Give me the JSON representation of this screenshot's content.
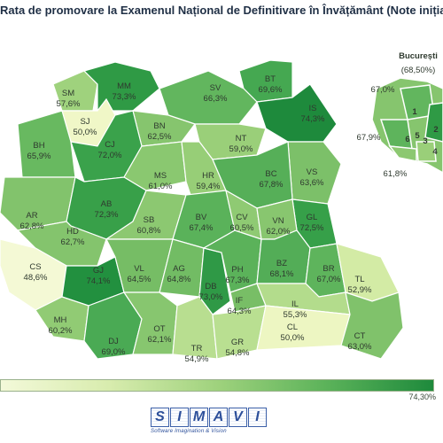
{
  "title": "Rata de promovare la Examenul Național de Definitivare în Învățământ (Note inițiale)",
  "bucharest": {
    "name": "București",
    "value": "(68,50%)",
    "sectors": [
      {
        "code": "1",
        "value": "67,0%"
      },
      {
        "code": "2",
        "value": ""
      },
      {
        "code": "3",
        "value": ""
      },
      {
        "code": "4",
        "value": ""
      },
      {
        "code": "5",
        "value": "61,8%"
      },
      {
        "code": "6",
        "value": "67,9%"
      }
    ]
  },
  "legend": {
    "max": "74,30%",
    "color_low": "#f3f9d9",
    "color_high": "#1e8a3c"
  },
  "counties": [
    {
      "code": "SM",
      "value": "57,6%",
      "color": "#9fd27d"
    },
    {
      "code": "MM",
      "value": "73,3%",
      "color": "#2f9a45"
    },
    {
      "code": "BT",
      "value": "69,6%",
      "color": "#45a851"
    },
    {
      "code": "SJ",
      "value": "50,0%",
      "color": "#f0f7c7"
    },
    {
      "code": "SV",
      "value": "66,3%",
      "color": "#62b65e"
    },
    {
      "code": "BN",
      "value": "62,5%",
      "color": "#86c56e"
    },
    {
      "code": "IS",
      "value": "74,3%",
      "color": "#1e8a3c"
    },
    {
      "code": "BH",
      "value": "65,9%",
      "color": "#68b960"
    },
    {
      "code": "CJ",
      "value": "72,0%",
      "color": "#3aa24b"
    },
    {
      "code": "NT",
      "value": "59,0%",
      "color": "#9acf79"
    },
    {
      "code": "VS",
      "value": "63,6%",
      "color": "#7cc069"
    },
    {
      "code": "MS",
      "value": "61,0%",
      "color": "#8ac870"
    },
    {
      "code": "HR",
      "value": "59,4%",
      "color": "#97ce77"
    },
    {
      "code": "BC",
      "value": "67,8%",
      "color": "#56af58"
    },
    {
      "code": "AR",
      "value": "62,8%",
      "color": "#82c36c"
    },
    {
      "code": "AB",
      "value": "72,3%",
      "color": "#38a049"
    },
    {
      "code": "GL",
      "value": "72,5%",
      "color": "#36a049"
    },
    {
      "code": "SB",
      "value": "60,8%",
      "color": "#8cc871"
    },
    {
      "code": "BV",
      "value": "67,4%",
      "color": "#5ab25a"
    },
    {
      "code": "CV",
      "value": "60,5%",
      "color": "#8fca73"
    },
    {
      "code": "VN",
      "value": "62,0%",
      "color": "#88c66f"
    },
    {
      "code": "HD",
      "value": "62,7%",
      "color": "#84c46d"
    },
    {
      "code": "CS",
      "value": "48,6%",
      "color": "#f4f9d5"
    },
    {
      "code": "GJ",
      "value": "74,1%",
      "color": "#22903f"
    },
    {
      "code": "VL",
      "value": "64,5%",
      "color": "#76bd65"
    },
    {
      "code": "AG",
      "value": "64,8%",
      "color": "#72bc64"
    },
    {
      "code": "PH",
      "value": "67,3%",
      "color": "#5bb25a"
    },
    {
      "code": "BZ",
      "value": "68,1%",
      "color": "#53ad57"
    },
    {
      "code": "BR",
      "value": "67,0%",
      "color": "#5eb45c"
    },
    {
      "code": "TL",
      "value": "52,9%",
      "color": "#d3eba5"
    },
    {
      "code": "DB",
      "value": "73,0%",
      "color": "#2f9946"
    },
    {
      "code": "MH",
      "value": "60,2%",
      "color": "#91cb74"
    },
    {
      "code": "OT",
      "value": "62,1%",
      "color": "#87c66f"
    },
    {
      "code": "IL",
      "value": "55,3%",
      "color": "#b3dc8c"
    },
    {
      "code": "IF",
      "value": "64,3%",
      "color": "#78be66"
    },
    {
      "code": "DJ",
      "value": "69,0%",
      "color": "#4aaa54"
    },
    {
      "code": "TR",
      "value": "54,9%",
      "color": "#b8de90"
    },
    {
      "code": "GR",
      "value": "54,8%",
      "color": "#b9df91"
    },
    {
      "code": "CL",
      "value": "50,0%",
      "color": "#edf6c2"
    },
    {
      "code": "CT",
      "value": "63,0%",
      "color": "#80c26b"
    }
  ],
  "logo": {
    "name": "SIMAVI",
    "tagline": "Software Imagination & Vision"
  }
}
